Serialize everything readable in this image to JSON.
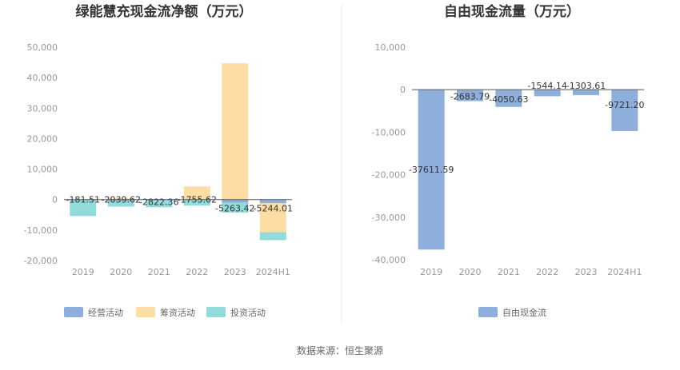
{
  "source_label": "数据来源：恒生聚源",
  "chart_data": [
    {
      "type": "bar",
      "stacked": true,
      "title": "绿能慧充现金流净额（万元）",
      "categories": [
        "2019",
        "2020",
        "2021",
        "2022",
        "2023",
        "2024H1"
      ],
      "yticks": [
        "50,000",
        "40,000",
        "30,000",
        "20,000",
        "10,000",
        "0",
        "-10,000",
        "-20,000"
      ],
      "ylim": [
        -20000,
        50000
      ],
      "grid": false,
      "legend_position": "bottom",
      "series": [
        {
          "name": "经营活动",
          "color": "#8eaedc",
          "values": [
            -300,
            -500,
            -400,
            -300,
            -1000,
            -1200
          ]
        },
        {
          "name": "筹资活动",
          "color": "#fddda4",
          "values": [
            200,
            400,
            -200,
            4300,
            44700,
            -9500
          ]
        },
        {
          "name": "投资活动",
          "color": "#91dbdb",
          "values": [
            -5100,
            -1800,
            -1900,
            -1700,
            -3300,
            -2600
          ]
        }
      ],
      "net_values": [
        -181.51,
        -2039.62,
        -2822.36,
        -1755.62,
        -5263.42,
        -5244.01
      ],
      "net_labels": [
        "-181.51",
        "-2039.62",
        "-2822.36",
        "-1755.62",
        "-5263.42",
        "-5244.01"
      ]
    },
    {
      "type": "bar",
      "title": "自由现金流量（万元）",
      "categories": [
        "2019",
        "2020",
        "2021",
        "2022",
        "2023",
        "2024H1"
      ],
      "yticks": [
        "10,000",
        "0",
        "-10,000",
        "-20,000",
        "-30,000",
        "-40,000"
      ],
      "ylim": [
        -40000,
        10000
      ],
      "grid": false,
      "legend_position": "bottom",
      "series": [
        {
          "name": "自由现金流",
          "color": "#8eaedc",
          "values": [
            -37611.59,
            -2683.79,
            -4050.63,
            -1544.14,
            -1303.61,
            -9721.2
          ]
        }
      ],
      "value_labels": [
        "-37611.59",
        "-2683.79",
        "-4050.63",
        "-1544.14",
        "-1303.61",
        "-9721.20"
      ]
    }
  ]
}
